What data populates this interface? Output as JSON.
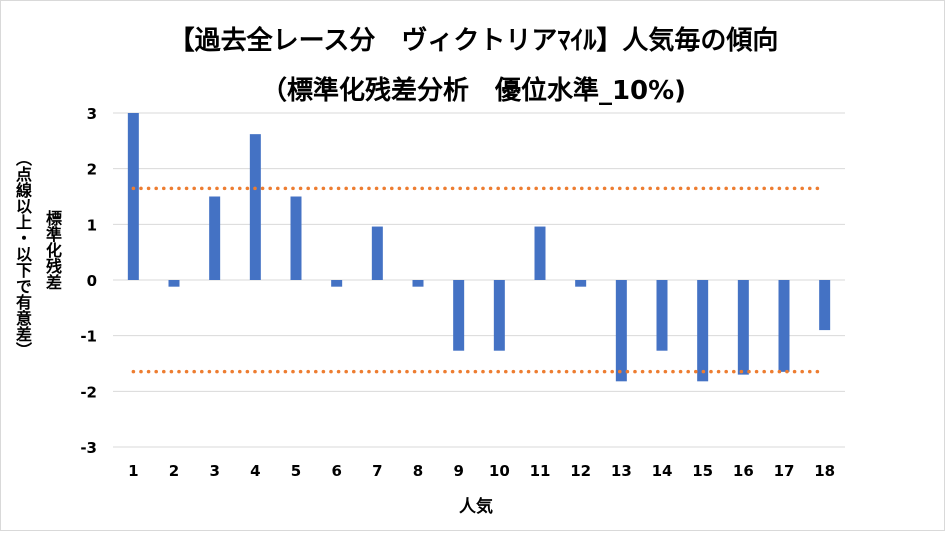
{
  "title_line1": "【過去全レース分　ヴィクトリアﾏｲﾙ】人気毎の傾向",
  "title_line2": "（標準化残差分析　優位水準_10%)",
  "colors": {
    "bar": "#4472C4",
    "threshold": "#ED7D31",
    "grid": "#d9d9d9"
  },
  "chart_data": {
    "type": "bar",
    "xlabel": "人気",
    "ylabel_line1": "標準化残差",
    "ylabel_line2": "（点線以上・以下で有意差）",
    "categories": [
      "1",
      "2",
      "3",
      "4",
      "5",
      "6",
      "7",
      "8",
      "9",
      "10",
      "11",
      "12",
      "13",
      "14",
      "15",
      "16",
      "17",
      "18"
    ],
    "values": [
      3.0,
      -0.12,
      1.5,
      2.62,
      1.5,
      -0.12,
      0.96,
      -0.12,
      -1.27,
      -1.27,
      0.96,
      -0.12,
      -1.82,
      -1.27,
      -1.82,
      -1.7,
      -1.65,
      -0.9
    ],
    "ylim": [
      -3,
      3
    ],
    "yticks": [
      "3",
      "2",
      "1",
      "0",
      "-1",
      "-2",
      "-3"
    ],
    "thresholds": [
      1.645,
      -1.645
    ],
    "grid": true,
    "legend": "none"
  }
}
